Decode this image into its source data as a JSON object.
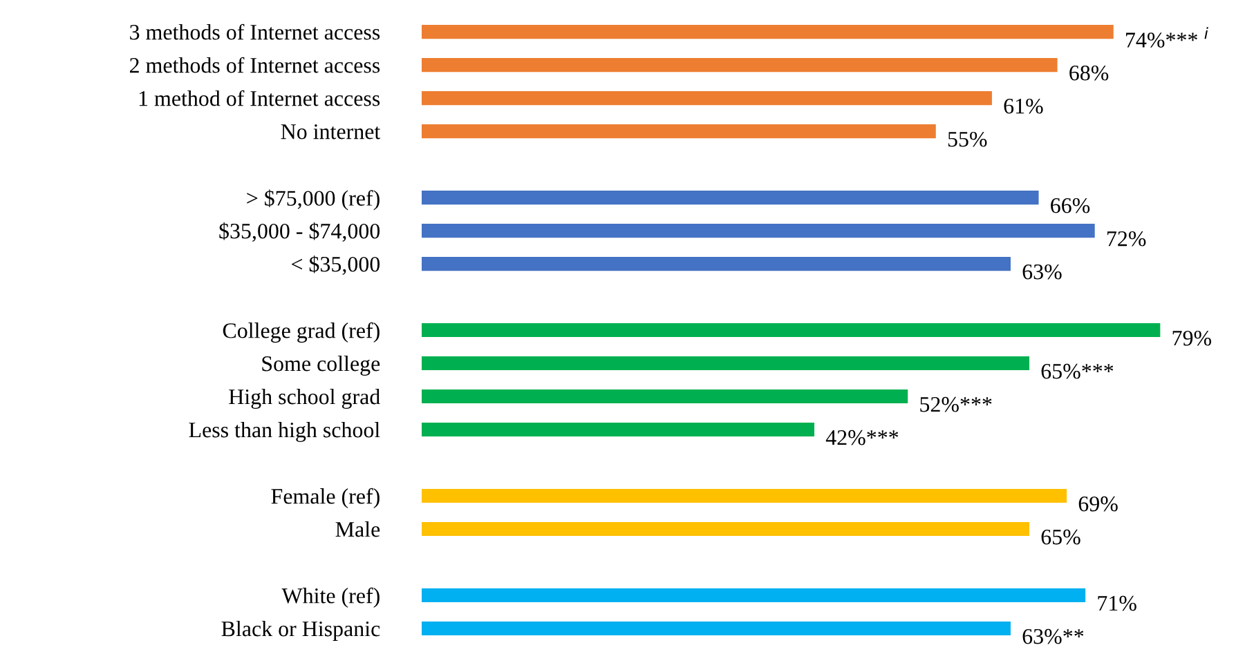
{
  "chart_data": {
    "type": "bar",
    "orientation": "horizontal",
    "categories": [
      "3 methods of Internet access",
      "2 methods of Internet access",
      "1 method of Internet access",
      "No internet",
      null,
      "> $75,000 (ref)",
      "$35,000 - $74,000",
      "< $35,000",
      null,
      "College grad (ref)",
      "Some college",
      "High school grad",
      "Less than high school",
      null,
      "Female (ref)",
      "Male",
      null,
      "White (ref)",
      "Black or Hispanic"
    ],
    "values": [
      74,
      68,
      61,
      55,
      null,
      66,
      72,
      63,
      null,
      79,
      65,
      52,
      42,
      null,
      69,
      65,
      null,
      71,
      63
    ],
    "value_labels": [
      "74%*** $^{i}$",
      "68%",
      "61%",
      "55%",
      null,
      "66%",
      "72%",
      "63%",
      null,
      "79%",
      "65%***",
      "52%***",
      "42%***",
      null,
      "69%",
      "65%",
      null,
      "71%",
      "63%**"
    ],
    "colors": [
      "#ed7d31",
      "#ed7d31",
      "#ed7d31",
      "#ed7d31",
      null,
      "#4472c4",
      "#4472c4",
      "#4472c4",
      null,
      "#00b050",
      "#00b050",
      "#00b050",
      "#00b050",
      null,
      "#ffc000",
      "#ffc000",
      null,
      "#00b0f0",
      "#00b0f0"
    ],
    "tick_labels": "y",
    "grid": false,
    "legend": false
  }
}
